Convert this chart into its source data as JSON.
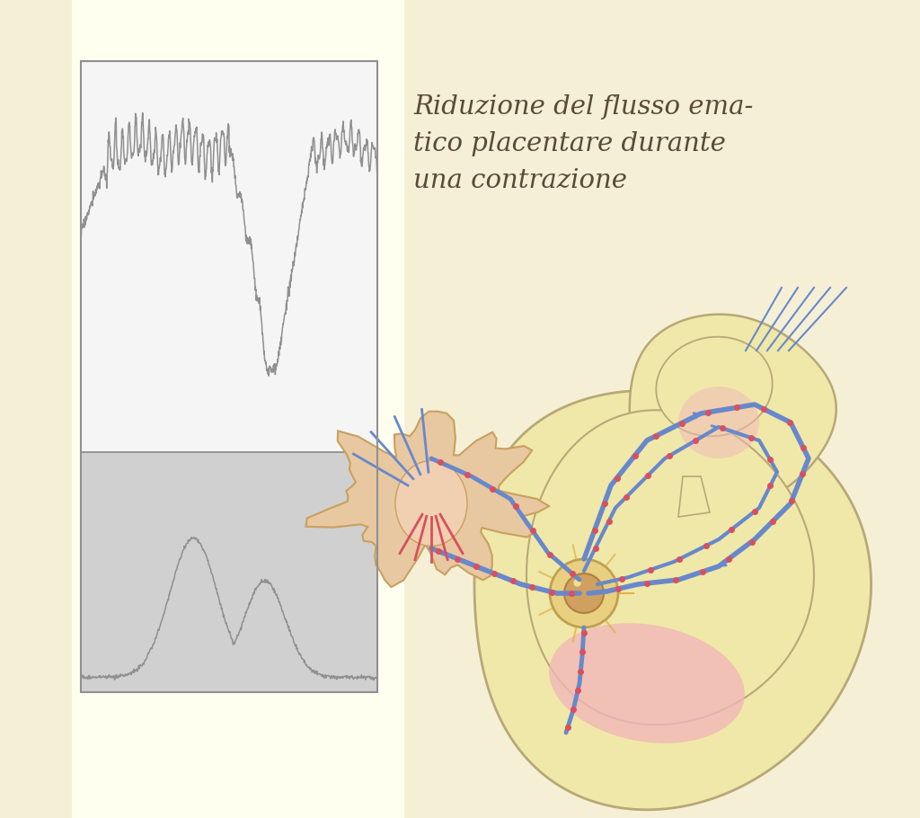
{
  "background_color": "#f5f0d5",
  "chart_bg_top": "#f5f5f5",
  "chart_bg_bottom": "#d0d0d0",
  "chart_line_color": "#909090",
  "chart_border_color": "#909090",
  "text_annotation": "Riduzione del flusso ema-\ntico placentare durante\nuna contrazione",
  "text_color": "#5a4a3a",
  "text_fontsize": 21,
  "body_fill": "#f0e8a8",
  "body_edge": "#b8a878",
  "placenta_fill": "#e8c8a0",
  "placenta_edge": "#c8a060",
  "pink_fill": "#f0b8b8",
  "blue_vessel": "#6888cc",
  "red_dot": "#d85060",
  "gray_edge": "#a0a0a0",
  "split_ratio": 0.62
}
